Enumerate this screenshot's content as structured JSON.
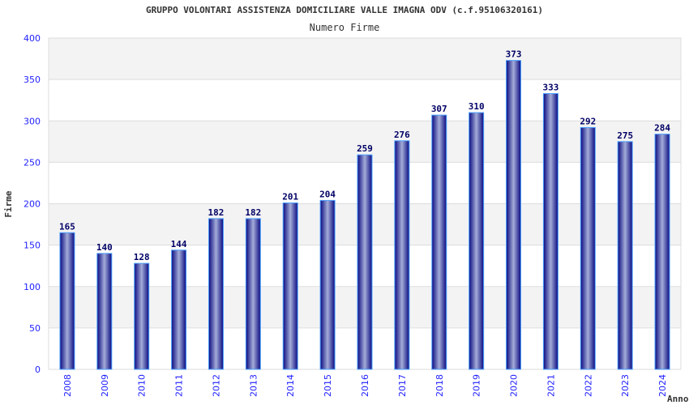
{
  "chart_data": {
    "type": "bar",
    "title": "GRUPPO VOLONTARI ASSISTENZA DOMICILIARE VALLE IMAGNA ODV (c.f.95106320161)",
    "subtitle": "Numero Firme",
    "xlabel": "Anno",
    "ylabel": "Firme",
    "ylim": [
      0,
      400
    ],
    "yticks": [
      0,
      50,
      100,
      150,
      200,
      250,
      300,
      350,
      400
    ],
    "categories": [
      "2008",
      "2009",
      "2010",
      "2011",
      "2012",
      "2013",
      "2014",
      "2015",
      "2016",
      "2017",
      "2018",
      "2019",
      "2020",
      "2021",
      "2022",
      "2023",
      "2024"
    ],
    "values": [
      165,
      140,
      128,
      144,
      182,
      182,
      201,
      204,
      259,
      276,
      307,
      310,
      373,
      333,
      292,
      275,
      284
    ],
    "colors": {
      "bar_dark": "#0a0a80",
      "bar_light": "#a0a8d8",
      "bar_edge": "#4aa0ff",
      "tick": "#2222ff",
      "label": "#000066"
    }
  }
}
